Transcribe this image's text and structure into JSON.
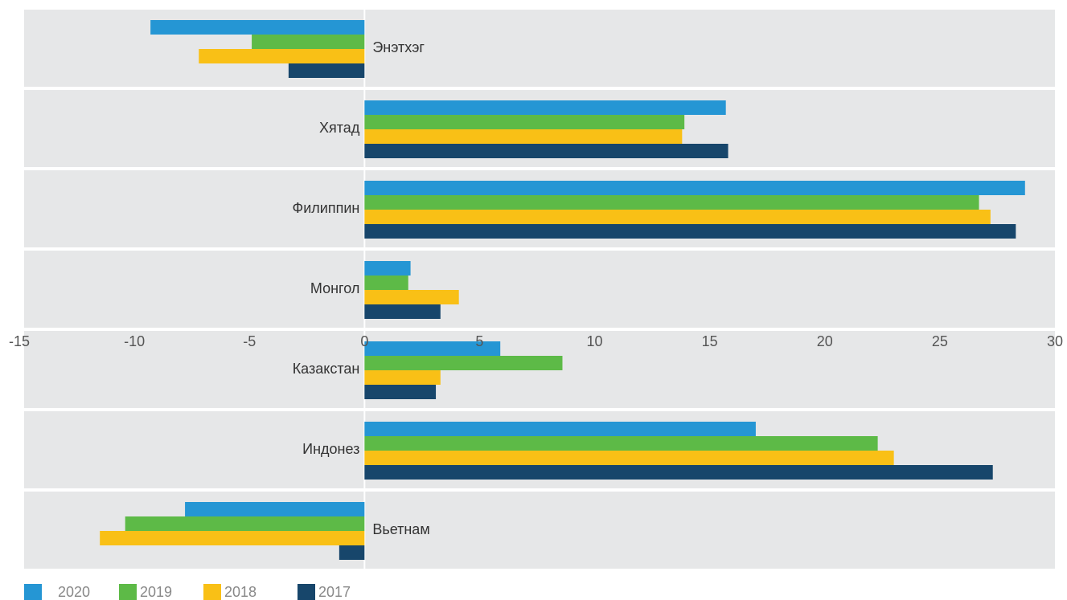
{
  "chart_data": {
    "type": "bar",
    "orientation": "horizontal",
    "categories": [
      "Энэтхэг",
      "Хятад",
      "Филиппин",
      "Монгол",
      "Казакстан",
      "Индонез",
      "Вьетнам"
    ],
    "series": [
      {
        "name": "2020",
        "color": "#2596d4",
        "values": [
          -9.3,
          15.7,
          28.7,
          2.0,
          5.9,
          17.0,
          -7.8
        ]
      },
      {
        "name": "2019",
        "color": "#5dba47",
        "values": [
          -4.9,
          13.9,
          26.7,
          1.9,
          8.6,
          22.3,
          -10.4
        ]
      },
      {
        "name": "2018",
        "color": "#f9c016",
        "values": [
          -7.2,
          13.8,
          27.2,
          4.1,
          3.3,
          23.0,
          -11.5
        ]
      },
      {
        "name": "2017",
        "color": "#17466b",
        "values": [
          -3.3,
          15.8,
          28.3,
          3.3,
          3.1,
          27.3,
          -1.1
        ]
      }
    ],
    "xlim": [
      -15,
      30
    ],
    "xticks": [
      -15,
      -10,
      -5,
      0,
      5,
      10,
      15,
      20,
      25,
      30
    ],
    "legend": "bottom-left"
  }
}
